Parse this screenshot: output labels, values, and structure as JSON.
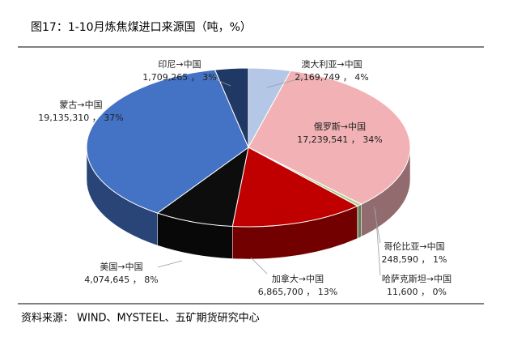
{
  "chart_data": {
    "type": "pie3d",
    "title": "图17：1-10月炼焦煤进口来源国（吨，%）",
    "source": "资料来源： WIND、MYSTEEL、五矿期货研究中心",
    "categories": [
      "澳大利亚→中国",
      "俄罗斯→中国",
      "哥伦比亚→中国",
      "哈萨克斯坦→中国",
      "加拿大→中国",
      "美国→中国",
      "蒙古→中国",
      "印尼→中国"
    ],
    "values": [
      2169749,
      17239541,
      248590,
      11600,
      6865700,
      4074645,
      19135310,
      1709265
    ],
    "value_labels": [
      "2,169,749 ， 4%",
      "17,239,541 ， 34%",
      "248,590 ， 1%",
      "11,600 ， 0%",
      "6,865,700 ， 13%",
      "4,074,645 ， 8%",
      "19,135,310 ， 37%",
      "1,709,265 ， 3%"
    ],
    "colors": [
      "#b4c7e7",
      "#f2b2b5",
      "#a9d18e",
      "#ffe699",
      "#c00000",
      "#0d0d0d",
      "#4472c4",
      "#1f3864"
    ]
  }
}
